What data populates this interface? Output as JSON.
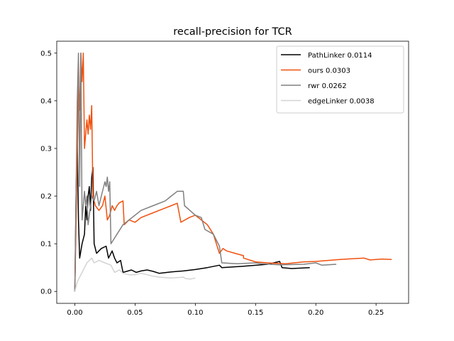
{
  "chart_data": {
    "type": "line",
    "title": "recall-precision for TCR",
    "xlabel": "",
    "ylabel": "",
    "xlim": [
      -0.015,
      0.277
    ],
    "ylim": [
      -0.025,
      0.525
    ],
    "xticks": [
      0.0,
      0.05,
      0.1,
      0.15,
      0.2,
      0.25
    ],
    "xtick_labels": [
      "0.00",
      "0.05",
      "0.10",
      "0.15",
      "0.20",
      "0.25"
    ],
    "yticks": [
      0.0,
      0.1,
      0.2,
      0.3,
      0.4,
      0.5
    ],
    "ytick_labels": [
      "0.0",
      "0.1",
      "0.2",
      "0.3",
      "0.4",
      "0.5"
    ],
    "grid": false,
    "legend_position": "top-right",
    "series": [
      {
        "name": "PathLinker 0.0114",
        "color": "#000000",
        "points": [
          [
            0.0,
            0.0
          ],
          [
            0.001,
            0.2
          ],
          [
            0.002,
            0.33
          ],
          [
            0.003,
            0.15
          ],
          [
            0.004,
            0.07
          ],
          [
            0.006,
            0.1
          ],
          [
            0.008,
            0.12
          ],
          [
            0.009,
            0.18
          ],
          [
            0.01,
            0.15
          ],
          [
            0.011,
            0.2
          ],
          [
            0.012,
            0.22
          ],
          [
            0.013,
            0.17
          ],
          [
            0.014,
            0.24
          ],
          [
            0.015,
            0.26
          ],
          [
            0.016,
            0.1
          ],
          [
            0.018,
            0.08
          ],
          [
            0.022,
            0.09
          ],
          [
            0.026,
            0.095
          ],
          [
            0.028,
            0.07
          ],
          [
            0.031,
            0.085
          ],
          [
            0.033,
            0.07
          ],
          [
            0.035,
            0.06
          ],
          [
            0.038,
            0.065
          ],
          [
            0.04,
            0.04
          ],
          [
            0.043,
            0.042
          ],
          [
            0.047,
            0.045
          ],
          [
            0.051,
            0.04
          ],
          [
            0.055,
            0.043
          ],
          [
            0.06,
            0.045
          ],
          [
            0.065,
            0.042
          ],
          [
            0.07,
            0.038
          ],
          [
            0.08,
            0.041
          ],
          [
            0.09,
            0.043
          ],
          [
            0.1,
            0.046
          ],
          [
            0.11,
            0.05
          ],
          [
            0.12,
            0.055
          ],
          [
            0.122,
            0.05
          ],
          [
            0.14,
            0.053
          ],
          [
            0.16,
            0.057
          ],
          [
            0.17,
            0.063
          ],
          [
            0.172,
            0.05
          ],
          [
            0.18,
            0.048
          ],
          [
            0.195,
            0.05
          ]
        ]
      },
      {
        "name": "ours 0.0303",
        "color": "#f0500d",
        "points": [
          [
            0.0,
            0.0
          ],
          [
            0.002,
            0.28
          ],
          [
            0.003,
            0.43
          ],
          [
            0.004,
            0.38
          ],
          [
            0.005,
            0.5
          ],
          [
            0.006,
            0.44
          ],
          [
            0.007,
            0.5
          ],
          [
            0.008,
            0.3
          ],
          [
            0.01,
            0.36
          ],
          [
            0.011,
            0.33
          ],
          [
            0.012,
            0.37
          ],
          [
            0.013,
            0.34
          ],
          [
            0.014,
            0.39
          ],
          [
            0.015,
            0.2
          ],
          [
            0.017,
            0.18
          ],
          [
            0.02,
            0.17
          ],
          [
            0.023,
            0.18
          ],
          [
            0.025,
            0.2
          ],
          [
            0.027,
            0.15
          ],
          [
            0.029,
            0.16
          ],
          [
            0.031,
            0.18
          ],
          [
            0.033,
            0.17
          ],
          [
            0.035,
            0.18
          ],
          [
            0.037,
            0.186
          ],
          [
            0.04,
            0.19
          ],
          [
            0.041,
            0.14
          ],
          [
            0.045,
            0.15
          ],
          [
            0.05,
            0.145
          ],
          [
            0.055,
            0.155
          ],
          [
            0.065,
            0.165
          ],
          [
            0.075,
            0.175
          ],
          [
            0.08,
            0.18
          ],
          [
            0.085,
            0.185
          ],
          [
            0.088,
            0.145
          ],
          [
            0.095,
            0.155
          ],
          [
            0.1,
            0.16
          ],
          [
            0.105,
            0.15
          ],
          [
            0.11,
            0.14
          ],
          [
            0.115,
            0.12
          ],
          [
            0.12,
            0.08
          ],
          [
            0.123,
            0.09
          ],
          [
            0.126,
            0.085
          ],
          [
            0.133,
            0.08
          ],
          [
            0.14,
            0.075
          ],
          [
            0.14,
            0.07
          ],
          [
            0.15,
            0.062
          ],
          [
            0.16,
            0.06
          ],
          [
            0.175,
            0.058
          ],
          [
            0.19,
            0.062
          ],
          [
            0.2,
            0.063
          ],
          [
            0.22,
            0.067
          ],
          [
            0.24,
            0.07
          ],
          [
            0.245,
            0.066
          ],
          [
            0.255,
            0.068
          ],
          [
            0.263,
            0.067
          ]
        ]
      },
      {
        "name": "rwr 0.0262",
        "color": "#808080",
        "points": [
          [
            0.0,
            0.0
          ],
          [
            0.002,
            0.4
          ],
          [
            0.003,
            0.5
          ],
          [
            0.004,
            0.22
          ],
          [
            0.005,
            0.5
          ],
          [
            0.006,
            0.15
          ],
          [
            0.008,
            0.21
          ],
          [
            0.009,
            0.18
          ],
          [
            0.01,
            0.2
          ],
          [
            0.011,
            0.14
          ],
          [
            0.012,
            0.16
          ],
          [
            0.014,
            0.2
          ],
          [
            0.016,
            0.19
          ],
          [
            0.018,
            0.21
          ],
          [
            0.02,
            0.18
          ],
          [
            0.022,
            0.2
          ],
          [
            0.025,
            0.23
          ],
          [
            0.026,
            0.22
          ],
          [
            0.027,
            0.24
          ],
          [
            0.028,
            0.21
          ],
          [
            0.029,
            0.23
          ],
          [
            0.03,
            0.1
          ],
          [
            0.035,
            0.12
          ],
          [
            0.04,
            0.14
          ],
          [
            0.045,
            0.15
          ],
          [
            0.055,
            0.17
          ],
          [
            0.065,
            0.18
          ],
          [
            0.075,
            0.19
          ],
          [
            0.08,
            0.2
          ],
          [
            0.085,
            0.21
          ],
          [
            0.09,
            0.21
          ],
          [
            0.091,
            0.18
          ],
          [
            0.1,
            0.16
          ],
          [
            0.105,
            0.155
          ],
          [
            0.108,
            0.13
          ],
          [
            0.115,
            0.12
          ],
          [
            0.12,
            0.095
          ],
          [
            0.122,
            0.06
          ],
          [
            0.135,
            0.058
          ],
          [
            0.15,
            0.06
          ],
          [
            0.155,
            0.058
          ],
          [
            0.17,
            0.056
          ],
          [
            0.19,
            0.057
          ],
          [
            0.2,
            0.06
          ],
          [
            0.205,
            0.055
          ],
          [
            0.217,
            0.057
          ]
        ]
      },
      {
        "name": "edgeLinker 0.0038",
        "color": "#d3d3d3",
        "points": [
          [
            0.0,
            0.0
          ],
          [
            0.002,
            0.02
          ],
          [
            0.004,
            0.03
          ],
          [
            0.006,
            0.04
          ],
          [
            0.008,
            0.05
          ],
          [
            0.01,
            0.06
          ],
          [
            0.012,
            0.065
          ],
          [
            0.014,
            0.07
          ],
          [
            0.016,
            0.06
          ],
          [
            0.02,
            0.065
          ],
          [
            0.025,
            0.06
          ],
          [
            0.03,
            0.055
          ],
          [
            0.033,
            0.04
          ],
          [
            0.037,
            0.045
          ],
          [
            0.04,
            0.038
          ],
          [
            0.045,
            0.035
          ],
          [
            0.05,
            0.035
          ],
          [
            0.055,
            0.038
          ],
          [
            0.06,
            0.035
          ],
          [
            0.065,
            0.032
          ],
          [
            0.07,
            0.03
          ],
          [
            0.08,
            0.028
          ],
          [
            0.085,
            0.029
          ],
          [
            0.09,
            0.03
          ],
          [
            0.092,
            0.027
          ],
          [
            0.096,
            0.026
          ],
          [
            0.1,
            0.028
          ]
        ]
      }
    ]
  }
}
